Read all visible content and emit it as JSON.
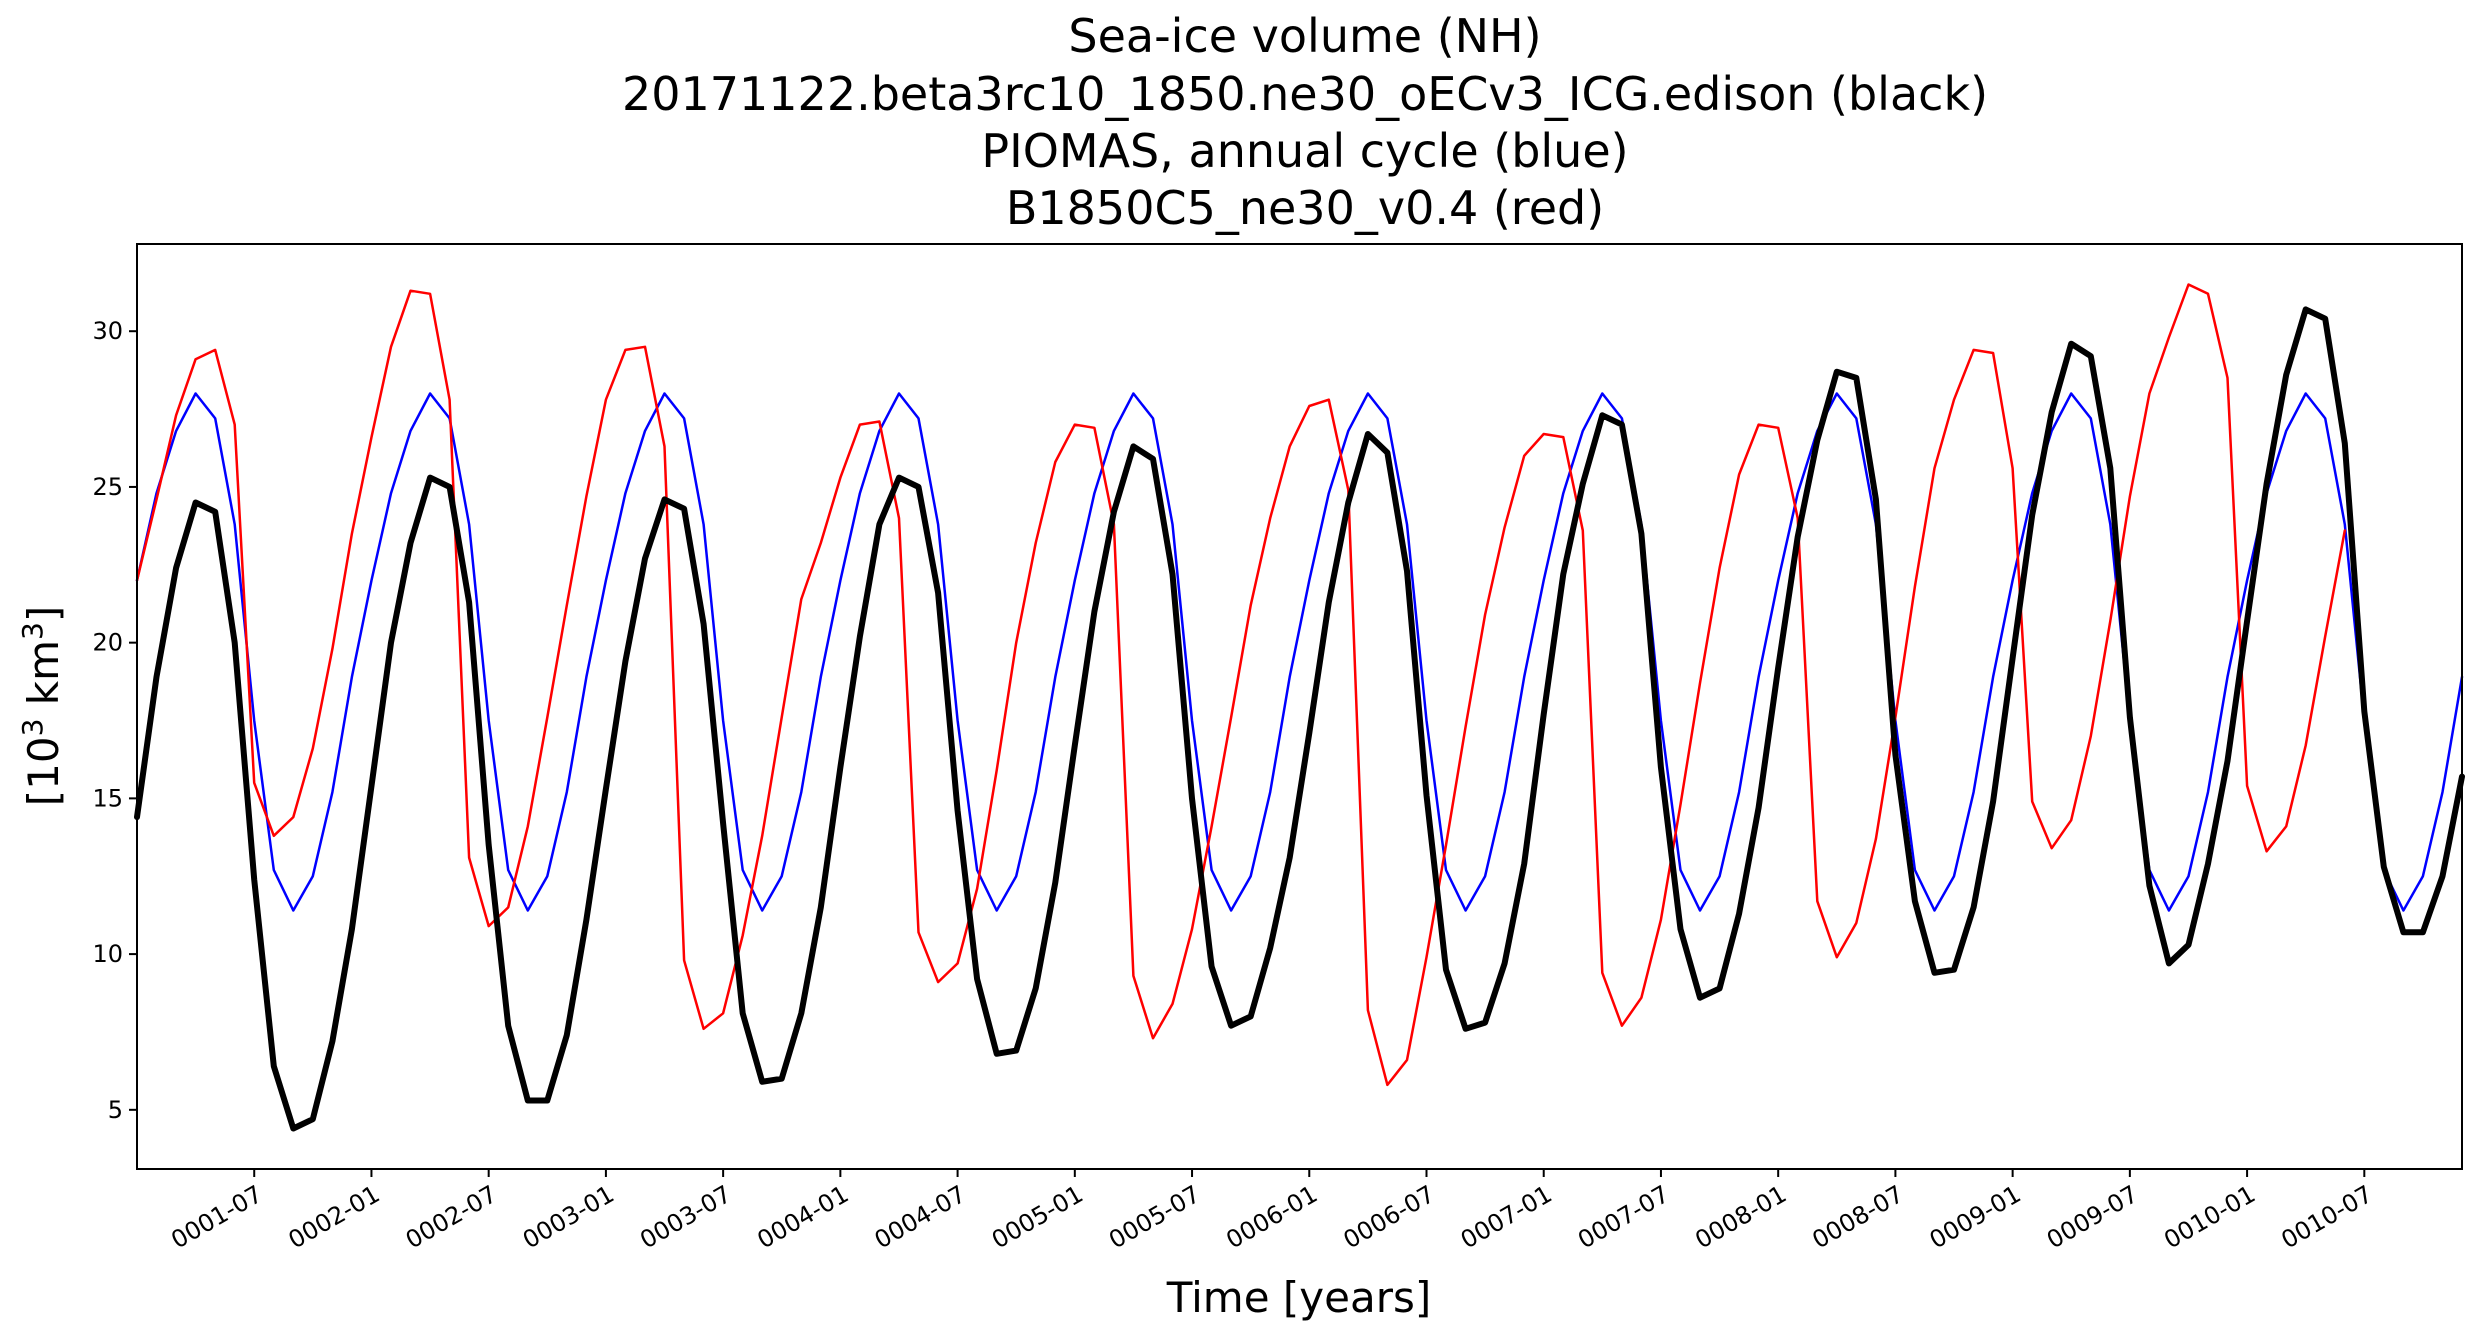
{
  "chart_data": {
    "type": "line",
    "title_lines": [
      "Sea-ice volume (NH)",
      "20171122.beta3rc10_1850.ne30_oECv3_ICG.edison (black)",
      "PIOMAS, annual cycle (blue)",
      "B1850C5_ne30_v0.4 (red)"
    ],
    "xlabel": "Time [years]",
    "ylabel_base": "[10",
    "ylabel_exp1": "3",
    "ylabel_mid": " km",
    "ylabel_exp2": "3",
    "ylabel_end": "]",
    "x_unit": "month index (0 = 0001-01)",
    "xlim": [
      0,
      119
    ],
    "ylim": [
      3.1,
      32.8
    ],
    "yticks": [
      5,
      10,
      15,
      20,
      25,
      30
    ],
    "xticks": [
      {
        "x": 6,
        "label": "0001-07"
      },
      {
        "x": 12,
        "label": "0002-01"
      },
      {
        "x": 18,
        "label": "0002-07"
      },
      {
        "x": 24,
        "label": "0003-01"
      },
      {
        "x": 30,
        "label": "0003-07"
      },
      {
        "x": 36,
        "label": "0004-01"
      },
      {
        "x": 42,
        "label": "0004-07"
      },
      {
        "x": 48,
        "label": "0005-01"
      },
      {
        "x": 54,
        "label": "0005-07"
      },
      {
        "x": 60,
        "label": "0006-01"
      },
      {
        "x": 66,
        "label": "0006-07"
      },
      {
        "x": 72,
        "label": "0007-01"
      },
      {
        "x": 78,
        "label": "0007-07"
      },
      {
        "x": 84,
        "label": "0008-01"
      },
      {
        "x": 90,
        "label": "0008-07"
      },
      {
        "x": 96,
        "label": "0009-01"
      },
      {
        "x": 102,
        "label": "0009-07"
      },
      {
        "x": 108,
        "label": "0010-01"
      },
      {
        "x": 114,
        "label": "0010-07"
      }
    ],
    "series": [
      {
        "name": "PIOMAS, annual cycle",
        "color": "#0000ff",
        "width": 2.5,
        "annual_cycle": [
          22.0,
          24.8,
          26.8,
          28.0,
          27.2,
          23.8,
          17.5,
          12.7,
          11.4,
          12.5,
          15.2,
          18.9
        ],
        "repeat_years": 10
      },
      {
        "name": "B1850C5_ne30_v0.4",
        "color": "#ff0000",
        "width": 2.5,
        "values": [
          22.0,
          24.6,
          27.3,
          29.1,
          29.4,
          27.0,
          15.5,
          13.8,
          14.4,
          16.6,
          19.8,
          23.5,
          26.6,
          29.5,
          31.3,
          31.2,
          27.8,
          13.1,
          10.9,
          11.5,
          14.1,
          17.6,
          21.2,
          24.7,
          27.8,
          29.4,
          29.5,
          26.3,
          9.8,
          7.6,
          8.1,
          10.6,
          13.8,
          17.6,
          21.4,
          23.2,
          25.3,
          27.0,
          27.1,
          24.0,
          10.7,
          9.1,
          9.7,
          12.1,
          15.9,
          20.0,
          23.2,
          25.8,
          27.0,
          26.9,
          23.8,
          9.3,
          7.3,
          8.4,
          10.8,
          14.1,
          17.6,
          21.2,
          24.0,
          26.3,
          27.6,
          27.8,
          24.9,
          8.2,
          5.8,
          6.6,
          9.9,
          13.5,
          17.3,
          20.9,
          23.7,
          26.0,
          26.7,
          26.6,
          23.6,
          9.4,
          7.7,
          8.6,
          11.1,
          14.8,
          18.7,
          22.4,
          25.4,
          27.0,
          26.9,
          24.0,
          11.7,
          9.9,
          11.0,
          13.7,
          17.6,
          21.8,
          25.6,
          27.8,
          29.4,
          29.3,
          25.6,
          14.9,
          13.4,
          14.3,
          17.0,
          20.7,
          24.7,
          28.0,
          29.8,
          31.5,
          31.2,
          28.5,
          15.4,
          13.3,
          14.1,
          16.7,
          20.2,
          23.6
        ]
      },
      {
        "name": "20171122.beta3rc10_1850.ne30_oECv3_ICG.edison",
        "color": "#000000",
        "width": 6,
        "values": [
          14.4,
          18.9,
          22.4,
          24.5,
          24.2,
          20.0,
          12.4,
          6.4,
          4.4,
          4.7,
          7.2,
          10.8,
          15.4,
          20.0,
          23.2,
          25.3,
          25.0,
          21.3,
          13.5,
          7.7,
          5.3,
          5.3,
          7.4,
          11.1,
          15.3,
          19.4,
          22.7,
          24.6,
          24.3,
          20.6,
          14.2,
          8.1,
          5.9,
          6.0,
          8.1,
          11.5,
          16.0,
          20.2,
          23.8,
          25.3,
          25.0,
          21.6,
          14.6,
          9.2,
          6.8,
          6.9,
          8.9,
          12.3,
          16.7,
          21.0,
          24.2,
          26.3,
          25.9,
          22.2,
          15.0,
          9.6,
          7.7,
          8.0,
          10.2,
          13.1,
          17.1,
          21.3,
          24.5,
          26.7,
          26.1,
          22.3,
          15.1,
          9.5,
          7.6,
          7.8,
          9.7,
          12.9,
          17.7,
          22.2,
          25.1,
          27.3,
          27.0,
          23.5,
          16.0,
          10.8,
          8.6,
          8.9,
          11.3,
          14.7,
          19.2,
          23.4,
          26.5,
          28.7,
          28.5,
          24.6,
          16.4,
          11.7,
          9.4,
          9.5,
          11.5,
          14.9,
          19.5,
          24.1,
          27.4,
          29.6,
          29.2,
          25.6,
          17.6,
          12.2,
          9.7,
          10.3,
          12.9,
          16.2,
          20.7,
          25.1,
          28.6,
          30.7,
          30.4,
          26.4,
          17.8,
          12.8,
          10.7,
          10.7,
          12.5,
          15.7
        ]
      }
    ]
  }
}
